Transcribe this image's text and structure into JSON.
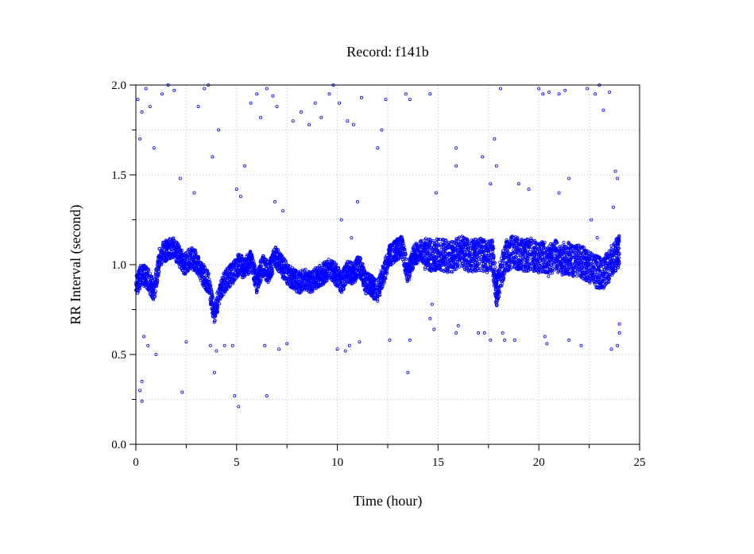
{
  "chart_data": {
    "type": "scatter",
    "title": "Record:  f141b",
    "xlabel": "Time (hour)",
    "ylabel": "RR Interval (second)",
    "xlim": [
      0,
      25
    ],
    "ylim": [
      0.0,
      2.0
    ],
    "xticks": [
      "0",
      "5",
      "10",
      "15",
      "20",
      "25"
    ],
    "yticks": [
      "0.0",
      "0.5",
      "1.0",
      "1.5",
      "2.0"
    ],
    "grid": true,
    "marker": "open-circle",
    "color": "#0000ff",
    "series": [
      {
        "baseline_points": [
          [
            0.0,
            0.88
          ],
          [
            0.3,
            0.95
          ],
          [
            0.6,
            0.92
          ],
          [
            0.9,
            0.85
          ],
          [
            1.2,
            1.05
          ],
          [
            1.5,
            1.08
          ],
          [
            1.8,
            1.1
          ],
          [
            2.1,
            1.06
          ],
          [
            2.4,
            1.0
          ],
          [
            2.7,
            1.04
          ],
          [
            3.0,
            1.02
          ],
          [
            3.3,
            0.95
          ],
          [
            3.6,
            0.9
          ],
          [
            3.9,
            0.72
          ],
          [
            4.2,
            0.86
          ],
          [
            4.5,
            0.92
          ],
          [
            4.8,
            0.95
          ],
          [
            5.1,
            1.0
          ],
          [
            5.4,
            0.98
          ],
          [
            5.7,
            1.02
          ],
          [
            6.0,
            0.9
          ],
          [
            6.3,
            1.0
          ],
          [
            6.6,
            0.95
          ],
          [
            6.9,
            1.05
          ],
          [
            7.2,
            1.0
          ],
          [
            7.5,
            0.95
          ],
          [
            7.8,
            0.92
          ],
          [
            8.1,
            0.9
          ],
          [
            8.4,
            0.92
          ],
          [
            8.7,
            0.9
          ],
          [
            9.0,
            0.93
          ],
          [
            9.3,
            0.95
          ],
          [
            9.6,
            0.98
          ],
          [
            9.9,
            0.95
          ],
          [
            10.2,
            0.9
          ],
          [
            10.5,
            0.96
          ],
          [
            10.8,
            0.95
          ],
          [
            11.1,
            1.0
          ],
          [
            11.4,
            0.9
          ],
          [
            11.7,
            0.88
          ],
          [
            12.0,
            0.85
          ],
          [
            12.3,
            0.95
          ],
          [
            12.6,
            1.05
          ],
          [
            12.9,
            1.08
          ],
          [
            13.2,
            1.1
          ],
          [
            13.5,
            0.95
          ],
          [
            13.8,
            1.05
          ],
          [
            14.1,
            1.08
          ],
          [
            14.4,
            1.06
          ],
          [
            14.7,
            1.05
          ],
          [
            15.0,
            1.06
          ],
          [
            15.3,
            1.05
          ],
          [
            15.6,
            1.04
          ],
          [
            15.9,
            1.06
          ],
          [
            16.2,
            1.07
          ],
          [
            16.5,
            1.05
          ],
          [
            16.8,
            1.05
          ],
          [
            17.1,
            1.06
          ],
          [
            17.4,
            1.04
          ],
          [
            17.7,
            1.05
          ],
          [
            17.9,
            0.85
          ],
          [
            18.1,
            0.95
          ],
          [
            18.4,
            1.05
          ],
          [
            18.7,
            1.07
          ],
          [
            19.0,
            1.06
          ],
          [
            19.3,
            1.05
          ],
          [
            19.6,
            1.06
          ],
          [
            19.9,
            1.04
          ],
          [
            20.2,
            1.05
          ],
          [
            20.5,
            1.02
          ],
          [
            20.8,
            1.05
          ],
          [
            21.1,
            1.03
          ],
          [
            21.4,
            1.04
          ],
          [
            21.7,
            1.02
          ],
          [
            22.0,
            1.03
          ],
          [
            22.3,
            1.0
          ],
          [
            22.6,
            0.98
          ],
          [
            22.9,
            0.96
          ],
          [
            23.2,
            0.95
          ],
          [
            23.5,
            1.0
          ],
          [
            23.8,
            1.05
          ],
          [
            24.0,
            1.08
          ]
        ],
        "outliers": [
          [
            0.1,
            1.92
          ],
          [
            0.2,
            1.7
          ],
          [
            0.3,
            1.85
          ],
          [
            0.5,
            1.98
          ],
          [
            0.7,
            1.88
          ],
          [
            0.9,
            1.65
          ],
          [
            0.4,
            0.6
          ],
          [
            0.6,
            0.55
          ],
          [
            0.3,
            0.35
          ],
          [
            0.2,
            0.3
          ],
          [
            0.3,
            0.24
          ],
          [
            1.0,
            0.5
          ],
          [
            1.3,
            1.95
          ],
          [
            1.6,
            2.0
          ],
          [
            1.9,
            1.97
          ],
          [
            2.2,
            1.48
          ],
          [
            2.3,
            0.29
          ],
          [
            2.5,
            0.57
          ],
          [
            2.9,
            1.4
          ],
          [
            3.1,
            1.88
          ],
          [
            3.4,
            1.98
          ],
          [
            3.6,
            2.0
          ],
          [
            3.8,
            1.6
          ],
          [
            4.1,
            1.75
          ],
          [
            3.9,
            0.4
          ],
          [
            4.0,
            0.52
          ],
          [
            3.7,
            0.55
          ],
          [
            4.4,
            0.55
          ],
          [
            4.8,
            0.55
          ],
          [
            4.9,
            0.27
          ],
          [
            5.1,
            0.21
          ],
          [
            5.0,
            1.42
          ],
          [
            5.2,
            1.38
          ],
          [
            5.4,
            1.55
          ],
          [
            5.7,
            1.9
          ],
          [
            6.0,
            1.95
          ],
          [
            6.2,
            1.82
          ],
          [
            6.5,
            1.98
          ],
          [
            6.8,
            1.94
          ],
          [
            7.0,
            1.88
          ],
          [
            6.9,
            1.35
          ],
          [
            7.3,
            1.3
          ],
          [
            6.4,
            0.55
          ],
          [
            6.5,
            0.27
          ],
          [
            7.1,
            0.53
          ],
          [
            7.5,
            0.56
          ],
          [
            7.8,
            1.8
          ],
          [
            8.2,
            1.85
          ],
          [
            8.6,
            1.78
          ],
          [
            8.9,
            1.9
          ],
          [
            9.2,
            1.82
          ],
          [
            9.6,
            1.95
          ],
          [
            9.8,
            2.0
          ],
          [
            10.1,
            1.9
          ],
          [
            10.5,
            1.8
          ],
          [
            10.8,
            1.78
          ],
          [
            11.2,
            1.93
          ],
          [
            10.2,
            1.25
          ],
          [
            10.7,
            1.15
          ],
          [
            11.0,
            1.35
          ],
          [
            10.0,
            0.53
          ],
          [
            10.4,
            0.52
          ],
          [
            10.6,
            0.55
          ],
          [
            11.1,
            0.57
          ],
          [
            12.0,
            1.65
          ],
          [
            12.2,
            1.75
          ],
          [
            12.4,
            1.92
          ],
          [
            13.4,
            1.95
          ],
          [
            13.6,
            1.92
          ],
          [
            12.6,
            0.58
          ],
          [
            13.5,
            0.4
          ],
          [
            13.6,
            0.58
          ],
          [
            14.6,
            1.95
          ],
          [
            14.6,
            0.7
          ],
          [
            14.7,
            0.78
          ],
          [
            14.8,
            0.64
          ],
          [
            14.9,
            1.4
          ],
          [
            15.9,
            1.65
          ],
          [
            15.9,
            1.55
          ],
          [
            17.2,
            1.6
          ],
          [
            17.8,
            1.7
          ],
          [
            17.9,
            1.55
          ],
          [
            17.6,
            1.45
          ],
          [
            15.9,
            0.62
          ],
          [
            16.0,
            0.66
          ],
          [
            17.0,
            0.62
          ],
          [
            17.3,
            0.62
          ],
          [
            17.6,
            0.58
          ],
          [
            18.1,
            1.98
          ],
          [
            18.2,
            0.62
          ],
          [
            18.3,
            0.58
          ],
          [
            18.8,
            0.58
          ],
          [
            19.0,
            1.45
          ],
          [
            19.5,
            1.42
          ],
          [
            20.0,
            1.98
          ],
          [
            20.2,
            1.95
          ],
          [
            20.5,
            1.96
          ],
          [
            21.0,
            1.95
          ],
          [
            21.3,
            1.97
          ],
          [
            21.5,
            1.48
          ],
          [
            21.0,
            1.4
          ],
          [
            20.3,
            0.6
          ],
          [
            20.4,
            0.56
          ],
          [
            21.5,
            0.58
          ],
          [
            22.1,
            0.55
          ],
          [
            22.4,
            1.98
          ],
          [
            22.8,
            1.95
          ],
          [
            23.0,
            2.0
          ],
          [
            23.2,
            1.86
          ],
          [
            23.5,
            1.96
          ],
          [
            23.8,
            1.52
          ],
          [
            23.9,
            1.48
          ],
          [
            23.6,
            0.53
          ],
          [
            23.9,
            0.55
          ],
          [
            24.0,
            0.62
          ],
          [
            24.0,
            0.67
          ],
          [
            23.7,
            1.32
          ],
          [
            22.6,
            1.25
          ],
          [
            22.9,
            1.15
          ]
        ]
      }
    ]
  }
}
